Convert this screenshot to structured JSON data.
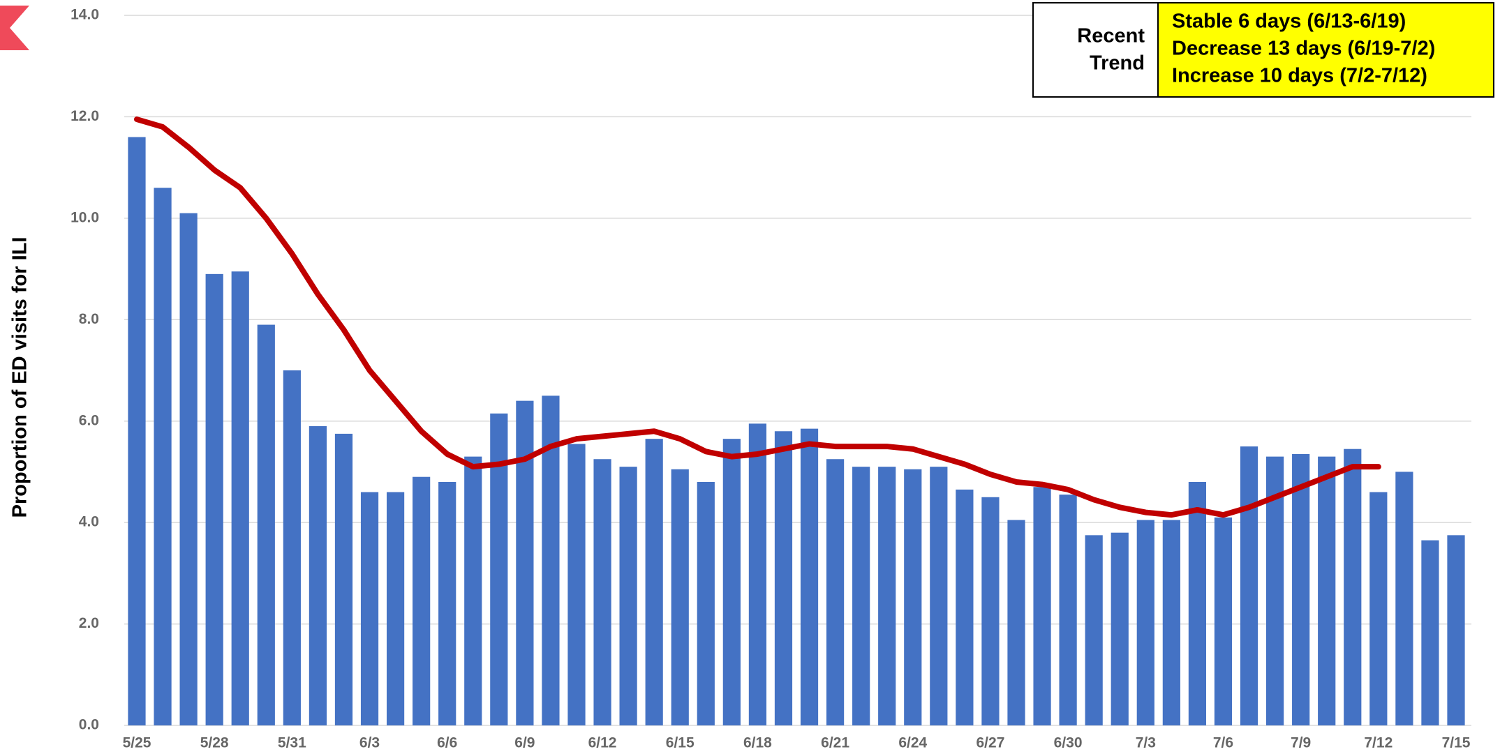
{
  "chart_data": {
    "type": "bar",
    "y_label": "Proportion of ED visits for ILI",
    "categories": [
      "5/25",
      null,
      null,
      "5/28",
      null,
      null,
      "5/31",
      null,
      null,
      "6/3",
      null,
      null,
      "6/6",
      null,
      null,
      "6/9",
      null,
      null,
      "6/12",
      null,
      null,
      "6/15",
      null,
      null,
      "6/18",
      null,
      null,
      "6/21",
      null,
      null,
      "6/24",
      null,
      null,
      "6/27",
      null,
      null,
      "6/30",
      null,
      null,
      "7/3",
      null,
      null,
      "7/6",
      null,
      null,
      "7/9",
      null,
      null,
      "7/12",
      null,
      null,
      "7/15"
    ],
    "bars": {
      "color": "#4472c4",
      "values": [
        11.6,
        10.6,
        10.1,
        8.9,
        8.95,
        7.9,
        7.0,
        5.9,
        5.75,
        4.6,
        4.6,
        4.9,
        4.8,
        5.3,
        6.15,
        6.4,
        6.5,
        5.55,
        5.25,
        5.1,
        5.65,
        5.05,
        4.8,
        5.65,
        5.95,
        5.8,
        5.85,
        5.25,
        5.1,
        5.1,
        5.05,
        5.1,
        4.65,
        4.5,
        4.05,
        4.7,
        4.55,
        3.75,
        3.8,
        4.05,
        4.05,
        4.8,
        4.1,
        5.5,
        5.3,
        5.35,
        5.3,
        5.45,
        4.6,
        5.0,
        3.65,
        3.75
      ]
    },
    "trend": {
      "type": "line",
      "color": "#c00000",
      "values": [
        11.95,
        11.8,
        11.4,
        10.95,
        10.6,
        10.0,
        9.3,
        8.5,
        7.8,
        7.0,
        6.4,
        5.8,
        5.35,
        5.1,
        5.15,
        5.25,
        5.5,
        5.65,
        5.7,
        5.75,
        5.8,
        5.65,
        5.4,
        5.3,
        5.35,
        5.45,
        5.55,
        5.5,
        5.5,
        5.5,
        5.45,
        5.3,
        5.15,
        4.95,
        4.8,
        4.75,
        4.65,
        4.45,
        4.3,
        4.2,
        4.15,
        4.25,
        4.15,
        4.3,
        4.5,
        4.7,
        4.9,
        5.1,
        5.1,
        null,
        null,
        null
      ]
    },
    "ylim": [
      0,
      14
    ],
    "yticks": [
      {
        "value": 0,
        "label": "0.0"
      },
      {
        "value": 2,
        "label": "2.0"
      },
      {
        "value": 4,
        "label": "4.0"
      },
      {
        "value": 6,
        "label": "6.0"
      },
      {
        "value": 8,
        "label": "8.0"
      },
      {
        "value": 10,
        "label": "10.0"
      },
      {
        "value": 12,
        "label": "12.0"
      },
      {
        "value": 14,
        "label": "14.0"
      }
    ],
    "grid": true,
    "trend_box": {
      "label": [
        "Recent",
        "Trend"
      ],
      "lines": [
        "Stable 6 days (6/13-6/19)",
        "Decrease 13 days (6/19-7/2)",
        "Increase 10 days (7/2-7/12)"
      ]
    }
  }
}
